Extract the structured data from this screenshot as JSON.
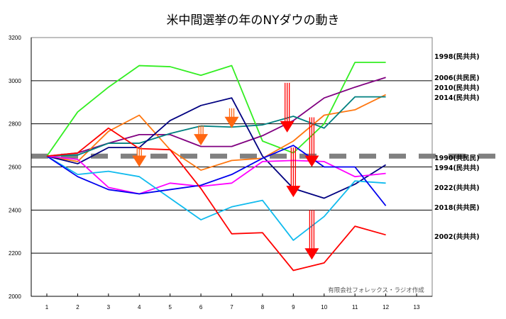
{
  "chart_data": {
    "type": "line",
    "title": "米中間選挙の年のNYダウの動き",
    "xlabel": "",
    "ylabel": "",
    "x": [
      1,
      2,
      3,
      4,
      5,
      6,
      7,
      8,
      9,
      10,
      11,
      12
    ],
    "xticks": [
      "1",
      "2",
      "3",
      "4",
      "5",
      "6",
      "7",
      "8",
      "9",
      "10",
      "11",
      "12",
      "13"
    ],
    "xlim": [
      1,
      13
    ],
    "yticks": [
      "2000",
      "2200",
      "2400",
      "2600",
      "2800",
      "3000",
      "3200"
    ],
    "ylim": [
      2000,
      3200
    ],
    "grid": true,
    "reference_line": {
      "value": 2650,
      "color": "#808080",
      "style": "dashed"
    },
    "series": [
      {
        "name": "1998(民共共)",
        "color": "#33ee22",
        "values": [
          2650,
          2855,
          2970,
          3070,
          3065,
          3025,
          3070,
          2720,
          2665,
          2800,
          3085,
          3085
        ]
      },
      {
        "name": "2006(共民民)",
        "color": "#800080",
        "values": [
          2650,
          2665,
          2710,
          2750,
          2750,
          2695,
          2695,
          2745,
          2815,
          2920,
          2970,
          3015
        ]
      },
      {
        "name": "2010(民共共)",
        "color": "#ff7711",
        "values": [
          2650,
          2625,
          2765,
          2840,
          2680,
          2585,
          2630,
          2640,
          2720,
          2840,
          2865,
          2935
        ]
      },
      {
        "name": "2014(民共共)",
        "color": "#008080",
        "values": [
          2650,
          2655,
          2710,
          2710,
          2755,
          2790,
          2785,
          2795,
          2835,
          2780,
          2925,
          2925
        ]
      },
      {
        "name": "1990(共民民)",
        "color": "#000080",
        "values": [
          2650,
          2615,
          2690,
          2690,
          2815,
          2885,
          2920,
          2650,
          2500,
          2455,
          2520,
          2610
        ]
      },
      {
        "name": "1994(民共共)",
        "color": "#ff00ff",
        "values": [
          2650,
          2635,
          2505,
          2475,
          2525,
          2510,
          2525,
          2625,
          2630,
          2625,
          2555,
          2570
        ]
      },
      {
        "name": "2022(共共共)",
        "color": "#11bbee",
        "values": [
          2650,
          2565,
          2580,
          2555,
          2455,
          2355,
          2415,
          2445,
          2260,
          2370,
          2535,
          2525
        ]
      },
      {
        "name": "2018(共共民)",
        "color": "#0000ee",
        "values": [
          2650,
          2555,
          2495,
          2475,
          2495,
          2515,
          2565,
          2640,
          2700,
          2600,
          2600,
          2420
        ]
      },
      {
        "name": "2002(共共共)",
        "color": "#ff0000",
        "values": [
          2650,
          2665,
          2780,
          2685,
          2680,
          2500,
          2290,
          2295,
          2120,
          2155,
          2325,
          2285
        ]
      }
    ],
    "annotations": {
      "orange_arrows": [
        {
          "x": 4,
          "y": 2600
        },
        {
          "x": 6,
          "y": 2700
        },
        {
          "x": 7,
          "y": 2780
        }
      ],
      "red_arrows": [
        {
          "x": 8.8,
          "y": 2760
        },
        {
          "x": 9,
          "y": 2460
        },
        {
          "x": 9.6,
          "y": 2600
        },
        {
          "x": 9.6,
          "y": 2170
        }
      ]
    },
    "credit": "有限会社フォレックス・ラジオ作成"
  }
}
